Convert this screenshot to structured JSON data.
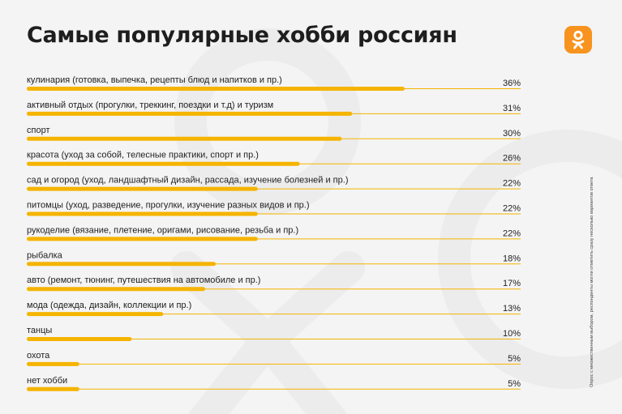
{
  "colors": {
    "accent": "#f5b400",
    "logo": "#f7931e",
    "background": "#f4f4f4"
  },
  "logo_icon": "odnoklassniki-logo-icon",
  "footnote": "Опрос с множественным выбором, респонденты могли отметить сразу несколько вариантов ответа",
  "chart_data": {
    "type": "bar",
    "orientation": "horizontal",
    "title": "Самые популярные хобби россиян",
    "categories": [
      "кулинария (готовка, выпечка, рецепты блюд и напитков и пр.)",
      "активный отдых (прогулки, треккинг, поездки и т.д) и туризм",
      "спорт",
      "красота (уход за собой, телесные практики, спорт и пр.)",
      "сад и огород (уход, ландшафтный дизайн, рассада, изучение болезней и пр.)",
      "питомцы (уход, разведение, прогулки, изучение разных видов и пр.)",
      "рукоделие (вязание, плетение, оригами, рисование, резьба и пр.)",
      "рыбалка",
      "авто (ремонт, тюнинг, путешествия на автомобиле и пр.)",
      "мода (одежда, дизайн, коллекции и пр.)",
      "танцы",
      "охота",
      "нет хобби"
    ],
    "values": [
      36,
      31,
      30,
      26,
      22,
      22,
      22,
      18,
      17,
      13,
      10,
      5,
      5
    ],
    "value_labels": [
      "36%",
      "31%",
      "30%",
      "26%",
      "22%",
      "22%",
      "22%",
      "18%",
      "17%",
      "13%",
      "10%",
      "5%",
      "5%"
    ],
    "unit": "%",
    "xlim": [
      0,
      36
    ],
    "grid": false,
    "legend": "none"
  }
}
